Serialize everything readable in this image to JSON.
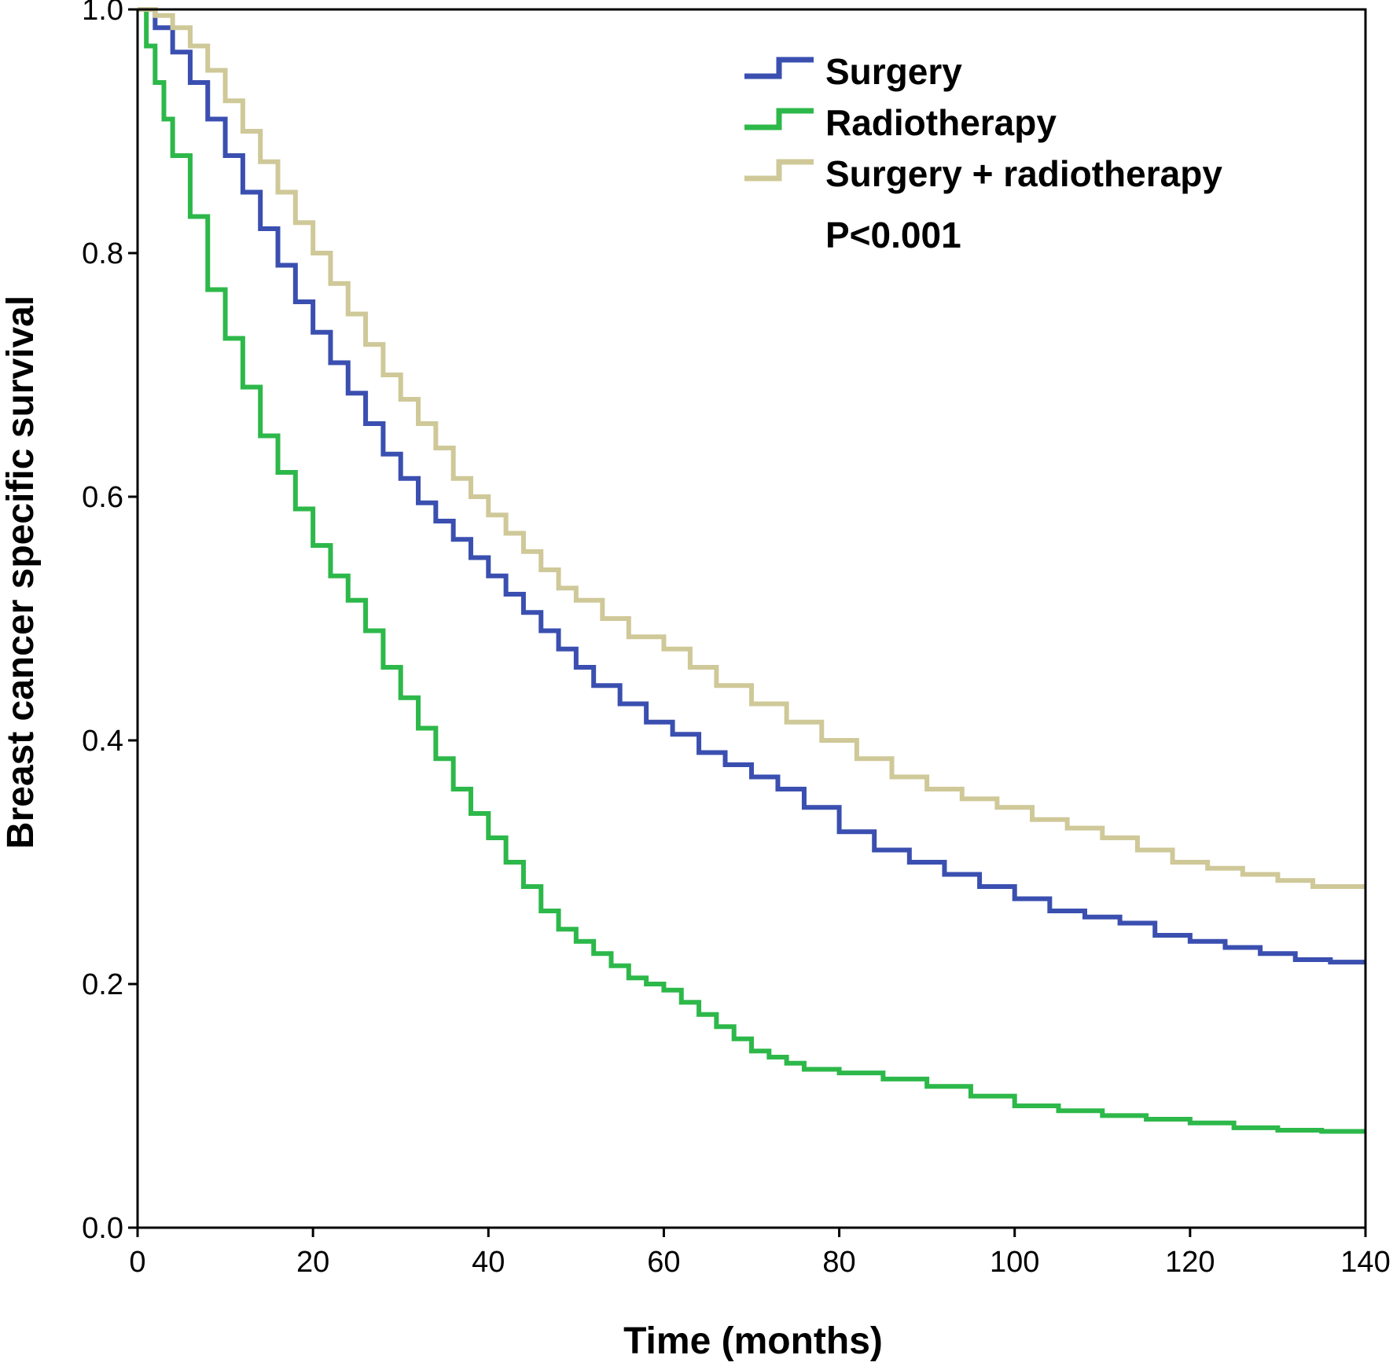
{
  "chart_data": {
    "type": "line",
    "step": true,
    "title": "",
    "xlabel": "Time (months)",
    "ylabel": "Breast cancer specific survival",
    "xlim": [
      0,
      140
    ],
    "ylim": [
      0,
      1
    ],
    "xticks": [
      "0",
      "20",
      "40",
      "60",
      "80",
      "100",
      "120",
      "140"
    ],
    "yticks": [
      "0.0",
      "0.2",
      "0.4",
      "0.6",
      "0.8",
      "1.0"
    ],
    "legend_position": "top-right",
    "annotation": "P<0.001",
    "series": [
      {
        "name": "Surgery",
        "color": "#3a4fb0",
        "x": [
          0,
          2,
          4,
          6,
          8,
          10,
          12,
          14,
          16,
          18,
          20,
          22,
          24,
          26,
          28,
          30,
          32,
          34,
          36,
          38,
          40,
          42,
          44,
          46,
          48,
          50,
          52,
          55,
          58,
          61,
          64,
          67,
          70,
          73,
          76,
          80,
          84,
          88,
          92,
          96,
          100,
          104,
          108,
          112,
          116,
          120,
          124,
          128,
          132,
          136,
          140
        ],
        "y": [
          1.0,
          0.985,
          0.965,
          0.94,
          0.91,
          0.88,
          0.85,
          0.82,
          0.79,
          0.76,
          0.735,
          0.71,
          0.685,
          0.66,
          0.635,
          0.615,
          0.595,
          0.58,
          0.565,
          0.55,
          0.535,
          0.52,
          0.505,
          0.49,
          0.475,
          0.46,
          0.445,
          0.43,
          0.415,
          0.405,
          0.39,
          0.38,
          0.37,
          0.36,
          0.345,
          0.325,
          0.31,
          0.3,
          0.29,
          0.28,
          0.27,
          0.26,
          0.255,
          0.25,
          0.24,
          0.235,
          0.23,
          0.225,
          0.22,
          0.218,
          0.218
        ]
      },
      {
        "name": "Radiotherapy",
        "color": "#2db84a",
        "x": [
          0,
          1,
          2,
          3,
          4,
          6,
          8,
          10,
          12,
          14,
          16,
          18,
          20,
          22,
          24,
          26,
          28,
          30,
          32,
          34,
          36,
          38,
          40,
          42,
          44,
          46,
          48,
          50,
          52,
          54,
          56,
          58,
          60,
          62,
          64,
          66,
          68,
          70,
          72,
          74,
          76,
          80,
          85,
          90,
          95,
          100,
          105,
          110,
          115,
          120,
          125,
          130,
          135,
          140
        ],
        "y": [
          1.0,
          0.97,
          0.94,
          0.91,
          0.88,
          0.83,
          0.77,
          0.73,
          0.69,
          0.65,
          0.62,
          0.59,
          0.56,
          0.535,
          0.515,
          0.49,
          0.46,
          0.435,
          0.41,
          0.385,
          0.36,
          0.34,
          0.32,
          0.3,
          0.28,
          0.26,
          0.245,
          0.235,
          0.225,
          0.215,
          0.205,
          0.2,
          0.195,
          0.185,
          0.175,
          0.165,
          0.155,
          0.145,
          0.14,
          0.135,
          0.13,
          0.127,
          0.122,
          0.116,
          0.108,
          0.1,
          0.096,
          0.092,
          0.089,
          0.086,
          0.082,
          0.08,
          0.079,
          0.079
        ]
      },
      {
        "name": "Surgery + radiotherapy",
        "color": "#cfc898",
        "x": [
          0,
          2,
          4,
          6,
          8,
          10,
          12,
          14,
          16,
          18,
          20,
          22,
          24,
          26,
          28,
          30,
          32,
          34,
          36,
          38,
          40,
          42,
          44,
          46,
          48,
          50,
          53,
          56,
          60,
          63,
          66,
          70,
          74,
          78,
          82,
          86,
          90,
          94,
          98,
          102,
          106,
          110,
          114,
          118,
          122,
          126,
          130,
          134,
          140
        ],
        "y": [
          1.0,
          0.995,
          0.985,
          0.97,
          0.95,
          0.925,
          0.9,
          0.875,
          0.85,
          0.825,
          0.8,
          0.775,
          0.75,
          0.725,
          0.7,
          0.68,
          0.66,
          0.64,
          0.615,
          0.6,
          0.585,
          0.57,
          0.555,
          0.54,
          0.525,
          0.515,
          0.5,
          0.485,
          0.475,
          0.46,
          0.445,
          0.43,
          0.415,
          0.4,
          0.385,
          0.37,
          0.36,
          0.352,
          0.345,
          0.335,
          0.328,
          0.32,
          0.31,
          0.3,
          0.295,
          0.29,
          0.285,
          0.28,
          0.28
        ]
      }
    ]
  }
}
